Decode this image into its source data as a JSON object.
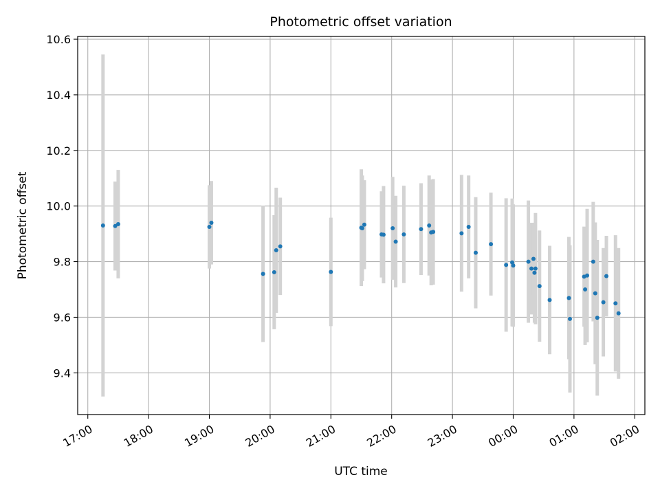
{
  "chart_data": {
    "type": "scatter",
    "title": "Photometric offset variation",
    "xlabel": "UTC time",
    "ylabel": "Photometric offset",
    "x_axis": {
      "kind": "time",
      "start_reference": "17:00",
      "ticks": [
        "17:00",
        "18:00",
        "19:00",
        "20:00",
        "21:00",
        "22:00",
        "23:00",
        "00:00",
        "01:00",
        "02:00"
      ],
      "range": [
        "16:50",
        "02:10"
      ]
    },
    "ylim": [
      9.25,
      10.61
    ],
    "yticks": [
      "9.4",
      "9.6",
      "9.8",
      "10.0",
      "10.2",
      "10.4",
      "10.6"
    ],
    "grid": true,
    "legend": "none",
    "colors": {
      "marker": "#1f77b4",
      "errorbar": "#d3d3d3",
      "grid": "#b0b0b0"
    },
    "series": [
      {
        "x": [
          "17:15",
          "17:27",
          "17:30",
          "19:00",
          "19:02",
          "19:53",
          "20:04",
          "20:06",
          "20:10",
          "21:00",
          "21:30",
          "21:31",
          "21:33",
          "21:50",
          "21:52",
          "22:01",
          "22:04",
          "22:12",
          "22:29",
          "22:37",
          "22:39",
          "22:41",
          "23:09",
          "23:16",
          "23:23",
          "23:38",
          "23:53",
          "23:59",
          "24:00",
          "24:15",
          "24:18",
          "24:20",
          "24:21",
          "24:22",
          "24:26",
          "24:36",
          "24:55",
          "24:56",
          "25:10",
          "25:11",
          "25:13",
          "25:19",
          "25:21",
          "25:23",
          "25:29",
          "25:32",
          "25:41",
          "25:44"
        ],
        "y": [
          9.93,
          9.928,
          9.935,
          9.925,
          9.94,
          9.756,
          9.762,
          9.841,
          9.855,
          9.763,
          9.922,
          9.92,
          9.933,
          9.898,
          9.897,
          9.92,
          9.872,
          9.898,
          9.917,
          9.93,
          9.905,
          9.907,
          9.902,
          9.925,
          9.832,
          9.863,
          9.788,
          9.797,
          9.786,
          9.8,
          9.775,
          9.81,
          9.76,
          9.775,
          9.712,
          9.662,
          9.669,
          9.594,
          9.746,
          9.7,
          9.75,
          9.8,
          9.686,
          9.598,
          9.654,
          9.748,
          9.65,
          9.614
        ],
        "yerr": [
          0.615,
          0.16,
          0.195,
          0.15,
          0.15,
          0.245,
          0.205,
          0.225,
          0.175,
          0.195,
          0.21,
          0.19,
          0.16,
          0.155,
          0.175,
          0.185,
          0.165,
          0.175,
          0.165,
          0.18,
          0.19,
          0.19,
          0.21,
          0.185,
          0.2,
          0.185,
          0.24,
          0.23,
          0.22,
          0.22,
          0.165,
          0.13,
          0.18,
          0.2,
          0.2,
          0.195,
          0.22,
          0.265,
          0.18,
          0.2,
          0.24,
          0.215,
          0.255,
          0.28,
          0.195,
          0.145,
          0.245,
          0.235
        ]
      }
    ]
  }
}
